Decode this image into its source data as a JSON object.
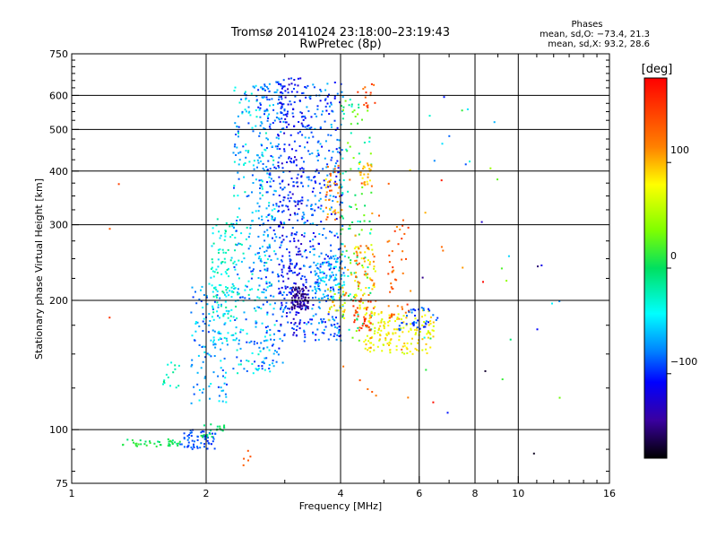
{
  "chart_data": {
    "type": "scatter",
    "title": "Tromsø 20141024 23:18:00–23:19:43",
    "subtitle": "RwPretec (8p)",
    "xlabel": "Frequency [MHz]",
    "ylabel": "Stationary phase Virtual Height [km]",
    "x_scale": "log",
    "y_scale": "log",
    "xlim": [
      1,
      16
    ],
    "ylim": [
      75,
      750
    ],
    "x_ticks": [
      1,
      2,
      4,
      6,
      8,
      10,
      16
    ],
    "x_tick_labels": [
      "1",
      "2",
      "4",
      "6",
      "8",
      "10",
      "16"
    ],
    "y_ticks": [
      75,
      100,
      200,
      300,
      400,
      500,
      600,
      750
    ],
    "y_tick_labels": [
      "75",
      "100",
      "200",
      "300",
      "400",
      "500",
      "600",
      "750"
    ],
    "grid": true,
    "stats": {
      "heading": "Phases",
      "line_o": "mean, sd,O: −73.4, 21.3",
      "line_x": "mean, sd,X:  93.2, 28.6"
    },
    "colorbar": {
      "label": "[deg]",
      "range": [
        -180,
        180
      ],
      "ticks": [
        100,
        0,
        -100
      ],
      "tick_labels": [
        "100",
        "0",
        "−100"
      ]
    },
    "clusters": [
      {
        "x": [
          1.3,
          1.75
        ],
        "y": [
          91,
          95
        ],
        "phase": [
          -10,
          20
        ],
        "n": 40
      },
      {
        "x": [
          1.75,
          2.1
        ],
        "y": [
          90,
          100
        ],
        "phase": [
          -105,
          -80
        ],
        "n": 60
      },
      {
        "x": [
          1.95,
          2.2
        ],
        "y": [
          96,
          104
        ],
        "phase": [
          -20,
          10
        ],
        "n": 20
      },
      {
        "x": [
          1.6,
          1.75
        ],
        "y": [
          125,
          145
        ],
        "phase": [
          -40,
          0
        ],
        "n": 15
      },
      {
        "x": [
          1.85,
          2.25
        ],
        "y": [
          115,
          220
        ],
        "phase": [
          -100,
          -40
        ],
        "n": 120
      },
      {
        "x": [
          2.05,
          2.35
        ],
        "y": [
          160,
          310
        ],
        "phase": [
          -60,
          -10
        ],
        "n": 120
      },
      {
        "x": [
          2.3,
          2.85
        ],
        "y": [
          135,
          640
        ],
        "phase": [
          -100,
          -20
        ],
        "n": 320
      },
      {
        "x": [
          2.6,
          3.0
        ],
        "y": [
          140,
          660
        ],
        "phase": [
          -110,
          -60
        ],
        "n": 200
      },
      {
        "x": [
          2.9,
          3.3
        ],
        "y": [
          165,
          660
        ],
        "phase": [
          -135,
          -85
        ],
        "n": 300
      },
      {
        "x": [
          3.1,
          3.4
        ],
        "y": [
          190,
          215
        ],
        "phase": [
          -165,
          -130
        ],
        "n": 90
      },
      {
        "x": [
          3.3,
          4.05
        ],
        "y": [
          160,
          650
        ],
        "phase": [
          -120,
          -60
        ],
        "n": 350
      },
      {
        "x": [
          3.5,
          4.1
        ],
        "y": [
          200,
          260
        ],
        "phase": [
          -90,
          -40
        ],
        "n": 100
      },
      {
        "x": [
          3.7,
          4.0
        ],
        "y": [
          300,
          420
        ],
        "phase": [
          80,
          150
        ],
        "n": 40
      },
      {
        "x": [
          3.75,
          4.1
        ],
        "y": [
          180,
          215
        ],
        "phase": [
          50,
          110
        ],
        "n": 30
      },
      {
        "x": [
          4.0,
          4.7
        ],
        "y": [
          160,
          600
        ],
        "phase": [
          -40,
          40
        ],
        "n": 120
      },
      {
        "x": [
          4.3,
          4.8
        ],
        "y": [
          190,
          270
        ],
        "phase": [
          60,
          140
        ],
        "n": 80
      },
      {
        "x": [
          4.2,
          4.7
        ],
        "y": [
          170,
          200
        ],
        "phase": [
          130,
          170
        ],
        "n": 40
      },
      {
        "x": [
          4.4,
          4.7
        ],
        "y": [
          370,
          420
        ],
        "phase": [
          80,
          110
        ],
        "n": 25
      },
      {
        "x": [
          4.5,
          6.5
        ],
        "y": [
          150,
          190
        ],
        "phase": [
          60,
          100
        ],
        "n": 160
      },
      {
        "x": [
          5.1,
          5.7
        ],
        "y": [
          180,
          300
        ],
        "phase": [
          110,
          160
        ],
        "n": 40
      },
      {
        "x": [
          5.4,
          6.6
        ],
        "y": [
          170,
          195
        ],
        "phase": [
          -110,
          -70
        ],
        "n": 40
      },
      {
        "x": [
          4.3,
          4.8
        ],
        "y": [
          560,
          640
        ],
        "phase": [
          120,
          160
        ],
        "n": 15
      },
      {
        "x": [
          4.0,
          5.8
        ],
        "y": [
          115,
          420
        ],
        "phase": [
          90,
          150
        ],
        "n": 30
      },
      {
        "x": [
          6.0,
          7.8
        ],
        "y": [
          105,
          620
        ],
        "phase": [
          -180,
          180
        ],
        "n": 20
      },
      {
        "x": [
          8.0,
          12.5
        ],
        "y": [
          85,
          620
        ],
        "phase": [
          -180,
          180
        ],
        "n": 18
      },
      {
        "x": [
          1.2,
          1.3
        ],
        "y": [
          160,
          390
        ],
        "phase": [
          130,
          160
        ],
        "n": 3
      },
      {
        "x": [
          2.4,
          2.6
        ],
        "y": [
          82,
          90
        ],
        "phase": [
          130,
          170
        ],
        "n": 5
      }
    ]
  }
}
